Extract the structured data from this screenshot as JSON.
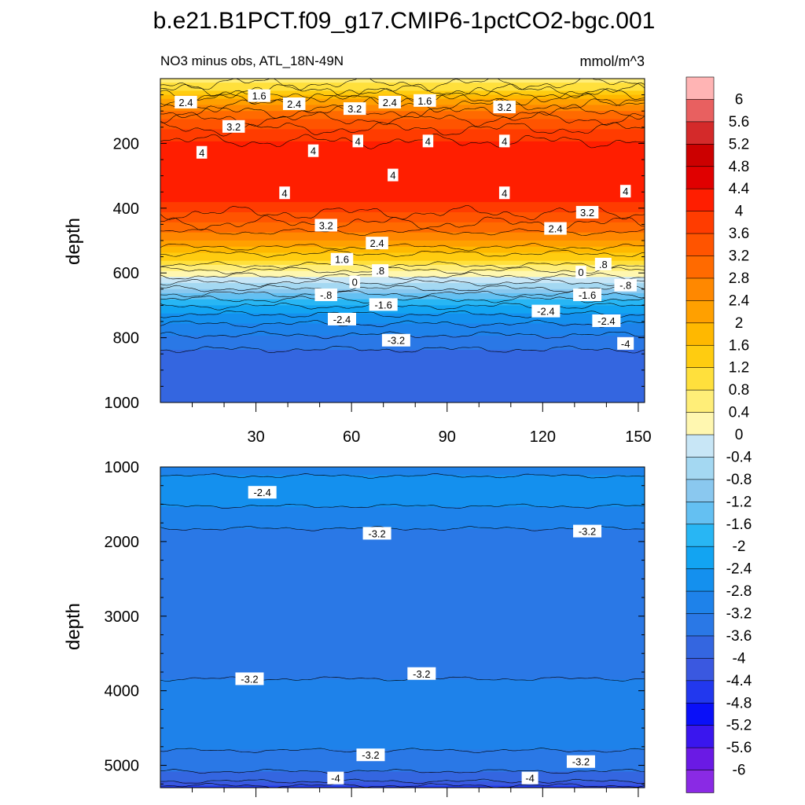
{
  "chart_data": {
    "type": "heatmap",
    "title": "b.e21.B1PCT.f09_g17.CMIP6-1pctCO2-bgc.001",
    "subtitle_left": "NO3 minus obs, ATL_18N-49N",
    "subtitle_right": "mmol/m^3",
    "ylabel": "depth",
    "x_range": [
      0,
      152
    ],
    "x_ticks": [
      "30",
      "60",
      "90",
      "120",
      "150"
    ],
    "x_tick_values": [
      30,
      60,
      90,
      120,
      150
    ],
    "colors": {
      "contour_line": "#000000",
      "label_bg": "#ffffff"
    },
    "panels": [
      {
        "name": "upper",
        "ylim": [
          0,
          1000
        ],
        "y_ticks": [
          "200",
          "400",
          "600",
          "800",
          "1000"
        ],
        "y_tick_values": [
          200,
          400,
          600,
          800,
          1000
        ],
        "profile": [
          {
            "depth": 0,
            "value": 0.6
          },
          {
            "depth": 30,
            "value": 1.0
          },
          {
            "depth": 70,
            "value": 2.2
          },
          {
            "depth": 130,
            "value": 3.3
          },
          {
            "depth": 180,
            "value": 3.9
          },
          {
            "depth": 220,
            "value": 4.2
          },
          {
            "depth": 300,
            "value": 4.3
          },
          {
            "depth": 380,
            "value": 4.0
          },
          {
            "depth": 440,
            "value": 3.3
          },
          {
            "depth": 500,
            "value": 2.4
          },
          {
            "depth": 560,
            "value": 1.2
          },
          {
            "depth": 600,
            "value": 0.2
          },
          {
            "depth": 640,
            "value": -0.6
          },
          {
            "depth": 690,
            "value": -1.8
          },
          {
            "depth": 740,
            "value": -2.6
          },
          {
            "depth": 800,
            "value": -3.3
          },
          {
            "depth": 860,
            "value": -3.8
          },
          {
            "depth": 1000,
            "value": -3.95
          }
        ],
        "contour_labels": [
          {
            "text": "2.4",
            "x": 8,
            "depth": 75
          },
          {
            "text": "1.6",
            "x": 31,
            "depth": 55
          },
          {
            "text": "2.4",
            "x": 42,
            "depth": 80
          },
          {
            "text": "3.2",
            "x": 61,
            "depth": 95
          },
          {
            "text": "2.4",
            "x": 72,
            "depth": 75
          },
          {
            "text": "1.6",
            "x": 83,
            "depth": 70
          },
          {
            "text": "3.2",
            "x": 108,
            "depth": 90
          },
          {
            "text": "3.2",
            "x": 23,
            "depth": 150
          },
          {
            "text": "4",
            "x": 13,
            "depth": 230
          },
          {
            "text": "4",
            "x": 48,
            "depth": 225
          },
          {
            "text": "4",
            "x": 62,
            "depth": 195
          },
          {
            "text": "4",
            "x": 84,
            "depth": 195
          },
          {
            "text": "4",
            "x": 108,
            "depth": 195
          },
          {
            "text": "4",
            "x": 73,
            "depth": 300
          },
          {
            "text": "4",
            "x": 39,
            "depth": 355
          },
          {
            "text": "4",
            "x": 108,
            "depth": 355
          },
          {
            "text": "4",
            "x": 146,
            "depth": 350
          },
          {
            "text": "3.2",
            "x": 52,
            "depth": 455
          },
          {
            "text": "3.2",
            "x": 134,
            "depth": 415
          },
          {
            "text": "2.4",
            "x": 68,
            "depth": 510
          },
          {
            "text": "2.4",
            "x": 124,
            "depth": 465
          },
          {
            "text": "1.6",
            "x": 57,
            "depth": 560
          },
          {
            "text": ".8",
            "x": 69,
            "depth": 595
          },
          {
            "text": ".8",
            "x": 139,
            "depth": 575
          },
          {
            "text": "0",
            "x": 61,
            "depth": 630
          },
          {
            "text": "0",
            "x": 132,
            "depth": 600
          },
          {
            "text": "-.8",
            "x": 52,
            "depth": 670
          },
          {
            "text": "-.8",
            "x": 146,
            "depth": 640
          },
          {
            "text": "-1.6",
            "x": 70,
            "depth": 700
          },
          {
            "text": "-1.6",
            "x": 134,
            "depth": 670
          },
          {
            "text": "-2.4",
            "x": 57,
            "depth": 745
          },
          {
            "text": "-2.4",
            "x": 121,
            "depth": 720
          },
          {
            "text": "-2.4",
            "x": 140,
            "depth": 750
          },
          {
            "text": "-3.2",
            "x": 74,
            "depth": 810
          },
          {
            "text": "-4",
            "x": 146,
            "depth": 820
          }
        ]
      },
      {
        "name": "lower",
        "ylim": [
          1000,
          5300
        ],
        "y_ticks": [
          "1000",
          "2000",
          "3000",
          "4000",
          "5000"
        ],
        "y_tick_values": [
          1000,
          2000,
          3000,
          4000,
          5000
        ],
        "profile": [
          {
            "depth": 1000,
            "value": -3.0
          },
          {
            "depth": 1300,
            "value": -2.5
          },
          {
            "depth": 1600,
            "value": -2.9
          },
          {
            "depth": 1900,
            "value": -3.3
          },
          {
            "depth": 2400,
            "value": -3.5
          },
          {
            "depth": 3200,
            "value": -3.5
          },
          {
            "depth": 3600,
            "value": -3.3
          },
          {
            "depth": 4200,
            "value": -3.05
          },
          {
            "depth": 4700,
            "value": -3.1
          },
          {
            "depth": 5000,
            "value": -3.4
          },
          {
            "depth": 5200,
            "value": -3.9
          },
          {
            "depth": 5300,
            "value": -4.6
          }
        ],
        "contour_labels": [
          {
            "text": "-2.4",
            "x": 32,
            "depth": 1350
          },
          {
            "text": "-3.2",
            "x": 68,
            "depth": 1900
          },
          {
            "text": "-3.2",
            "x": 134,
            "depth": 1870
          },
          {
            "text": "-3.2",
            "x": 28,
            "depth": 3850
          },
          {
            "text": "-3.2",
            "x": 82,
            "depth": 3780
          },
          {
            "text": "-3.2",
            "x": 66,
            "depth": 4870
          },
          {
            "text": "-3.2",
            "x": 132,
            "depth": 4960
          },
          {
            "text": "-4",
            "x": 55,
            "depth": 5180
          },
          {
            "text": "-4",
            "x": 116,
            "depth": 5180
          }
        ]
      }
    ],
    "colorbar": {
      "levels": [
        "6",
        "5.6",
        "5.2",
        "4.8",
        "4.4",
        "4",
        "3.6",
        "3.2",
        "2.8",
        "2.4",
        "2",
        "1.6",
        "1.2",
        "0.8",
        "0.4",
        "0",
        "-0.4",
        "-0.8",
        "-1.2",
        "-1.6",
        "-2",
        "-2.4",
        "-2.8",
        "-3.2",
        "-3.6",
        "-4",
        "-4.4",
        "-4.8",
        "-5.2",
        "-5.6",
        "-6"
      ],
      "colors": [
        "#ffb4b4",
        "#e86060",
        "#d42a2a",
        "#cc0000",
        "#e00000",
        "#ff1e00",
        "#ff3c00",
        "#ff5400",
        "#ff6a00",
        "#ff8800",
        "#ffa000",
        "#ffb800",
        "#ffcc10",
        "#ffe03c",
        "#ffee78",
        "#fff7b0",
        "#c8e6f6",
        "#a4d8f2",
        "#8ac8ef",
        "#64c0f2",
        "#28b6f4",
        "#12a4f2",
        "#1490ee",
        "#1e82ea",
        "#2a78e6",
        "#3466e0",
        "#3a58e0",
        "#2238ee",
        "#0a10f8",
        "#3a16ee",
        "#6a1ae4",
        "#8a2ae4"
      ]
    }
  }
}
